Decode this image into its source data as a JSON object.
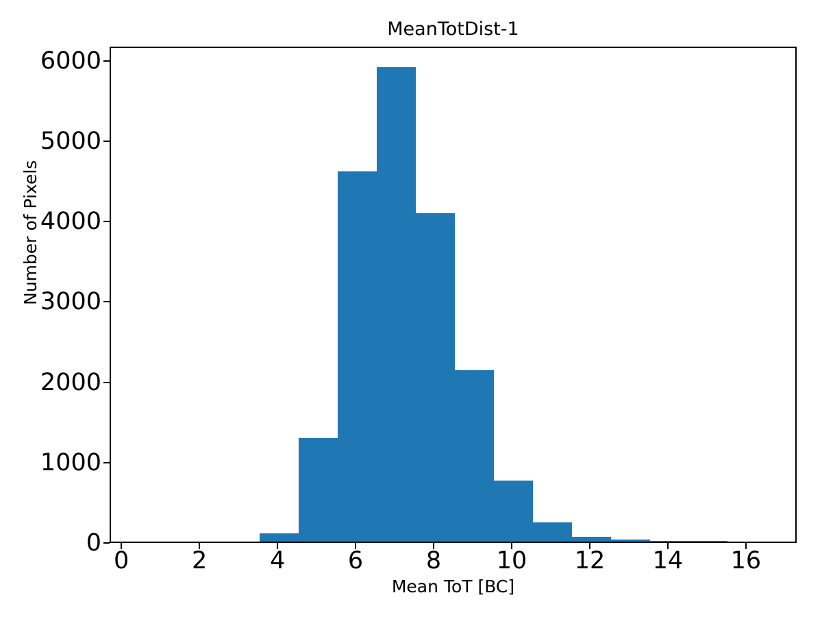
{
  "figure": {
    "background": "#ffffff"
  },
  "chart_data": {
    "type": "bar",
    "subtype": "histogram",
    "title": "MeanTotDist-1",
    "xlabel": "Mean ToT [BC]",
    "ylabel": "Number of Pixels",
    "bar_color": "#1f77b4",
    "axis_color": "#000000",
    "grid": false,
    "legend": null,
    "bin_edges": [
      3.5,
      4.5,
      5.5,
      6.5,
      7.5,
      8.5,
      9.5,
      10.5,
      11.5,
      12.5,
      13.5,
      14.5,
      15.5
    ],
    "counts": [
      100,
      1290,
      4610,
      5900,
      4090,
      2130,
      760,
      240,
      60,
      30,
      12,
      8
    ],
    "xlim": [
      -0.3,
      17.3
    ],
    "ylim": [
      0,
      6175
    ],
    "xticks": [
      0,
      2,
      4,
      6,
      8,
      10,
      12,
      14,
      16
    ],
    "yticks": [
      0,
      1000,
      2000,
      3000,
      4000,
      5000,
      6000
    ]
  }
}
